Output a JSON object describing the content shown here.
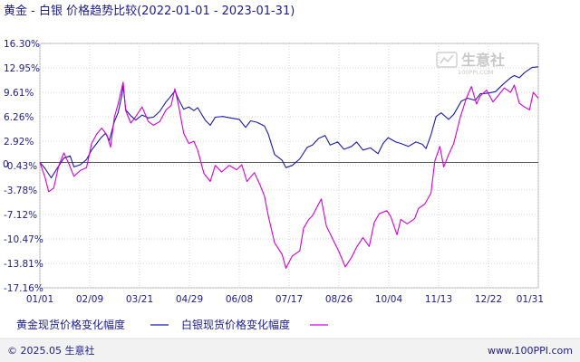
{
  "chart_data": {
    "type": "line",
    "title": "黄金 - 白银 价格趋势比较(2022-01-01 - 2023-01-31)",
    "y_ticks": [
      "16.30%",
      "12.95%",
      "9.61%",
      "6.26%",
      "2.92%",
      "-0.43%",
      "-3.78%",
      "-7.12%",
      "-10.47%",
      "-13.81%",
      "-17.16%"
    ],
    "y_tick_values": [
      16.3,
      12.95,
      9.61,
      6.26,
      2.92,
      -0.43,
      -3.78,
      -7.12,
      -10.47,
      -13.81,
      -17.16
    ],
    "zero_label": "0",
    "ylim": [
      -17.16,
      16.3
    ],
    "x_ticks": [
      "01/01",
      "02/09",
      "03/21",
      "04/29",
      "06/08",
      "07/17",
      "08/26",
      "10/04",
      "11/13",
      "12/22",
      "01/31"
    ],
    "x_start": "2022-01-01",
    "x_end": "2023-01-31",
    "grid": true,
    "legend_position": "bottom-left",
    "series": [
      {
        "name": "黄金现货价格变化幅度",
        "color": "#1a1aa6",
        "points": [
          [
            "2022-01-01",
            0.0
          ],
          [
            "2022-01-05",
            -0.8
          ],
          [
            "2022-01-10",
            -2.1
          ],
          [
            "2022-01-14",
            -1.0
          ],
          [
            "2022-01-20",
            0.6
          ],
          [
            "2022-01-25",
            0.9
          ],
          [
            "2022-01-28",
            -0.6
          ],
          [
            "2022-02-02",
            -0.3
          ],
          [
            "2022-02-07",
            0.4
          ],
          [
            "2022-02-11",
            1.7
          ],
          [
            "2022-02-15",
            2.6
          ],
          [
            "2022-02-18",
            3.3
          ],
          [
            "2022-02-22",
            4.0
          ],
          [
            "2022-02-25",
            3.0
          ],
          [
            "2022-03-01",
            5.6
          ],
          [
            "2022-03-04",
            6.8
          ],
          [
            "2022-03-07",
            9.2
          ],
          [
            "2022-03-08",
            10.6
          ],
          [
            "2022-03-10",
            7.2
          ],
          [
            "2022-03-14",
            6.4
          ],
          [
            "2022-03-18",
            5.8
          ],
          [
            "2022-03-23",
            6.5
          ],
          [
            "2022-03-28",
            6.1
          ],
          [
            "2022-04-01",
            6.2
          ],
          [
            "2022-04-06",
            7.0
          ],
          [
            "2022-04-11",
            8.3
          ],
          [
            "2022-04-14",
            8.9
          ],
          [
            "2022-04-18",
            9.8
          ],
          [
            "2022-04-21",
            8.6
          ],
          [
            "2022-04-25",
            7.3
          ],
          [
            "2022-04-29",
            7.6
          ],
          [
            "2022-05-03",
            7.1
          ],
          [
            "2022-05-06",
            7.5
          ],
          [
            "2022-05-12",
            5.8
          ],
          [
            "2022-05-16",
            5.1
          ],
          [
            "2022-05-20",
            6.2
          ],
          [
            "2022-05-26",
            6.3
          ],
          [
            "2022-06-01",
            6.1
          ],
          [
            "2022-06-08",
            5.9
          ],
          [
            "2022-06-13",
            4.8
          ],
          [
            "2022-06-17",
            5.7
          ],
          [
            "2022-06-22",
            5.5
          ],
          [
            "2022-06-28",
            5.0
          ],
          [
            "2022-07-01",
            3.9
          ],
          [
            "2022-07-06",
            1.1
          ],
          [
            "2022-07-12",
            0.3
          ],
          [
            "2022-07-15",
            -0.7
          ],
          [
            "2022-07-20",
            -0.4
          ],
          [
            "2022-07-26",
            0.5
          ],
          [
            "2022-08-01",
            2.1
          ],
          [
            "2022-08-05",
            2.4
          ],
          [
            "2022-08-10",
            3.3
          ],
          [
            "2022-08-15",
            3.7
          ],
          [
            "2022-08-19",
            2.4
          ],
          [
            "2022-08-25",
            2.8
          ],
          [
            "2022-08-30",
            1.8
          ],
          [
            "2022-09-05",
            2.2
          ],
          [
            "2022-09-09",
            2.8
          ],
          [
            "2022-09-14",
            1.7
          ],
          [
            "2022-09-20",
            2.0
          ],
          [
            "2022-09-26",
            1.2
          ],
          [
            "2022-09-30",
            2.6
          ],
          [
            "2022-10-04",
            3.4
          ],
          [
            "2022-10-10",
            2.8
          ],
          [
            "2022-10-14",
            2.6
          ],
          [
            "2022-10-20",
            2.2
          ],
          [
            "2022-10-26",
            2.8
          ],
          [
            "2022-10-31",
            2.5
          ],
          [
            "2022-11-03",
            1.9
          ],
          [
            "2022-11-07",
            3.8
          ],
          [
            "2022-11-11",
            6.3
          ],
          [
            "2022-11-15",
            6.8
          ],
          [
            "2022-11-21",
            5.9
          ],
          [
            "2022-11-25",
            6.6
          ],
          [
            "2022-12-01",
            8.4
          ],
          [
            "2022-12-06",
            8.8
          ],
          [
            "2022-12-12",
            8.5
          ],
          [
            "2022-12-16",
            9.4
          ],
          [
            "2022-12-22",
            9.5
          ],
          [
            "2022-12-28",
            9.7
          ],
          [
            "2023-01-03",
            10.7
          ],
          [
            "2023-01-09",
            11.6
          ],
          [
            "2023-01-12",
            11.9
          ],
          [
            "2023-01-16",
            11.6
          ],
          [
            "2023-01-20",
            12.3
          ],
          [
            "2023-01-26",
            13.0
          ],
          [
            "2023-01-31",
            13.1
          ]
        ]
      },
      {
        "name": "白银现货价格变化幅度",
        "color": "#d400d4",
        "points": [
          [
            "2022-01-01",
            0.0
          ],
          [
            "2022-01-05",
            -2.0
          ],
          [
            "2022-01-08",
            -4.0
          ],
          [
            "2022-01-12",
            -3.5
          ],
          [
            "2022-01-16",
            -0.4
          ],
          [
            "2022-01-20",
            1.3
          ],
          [
            "2022-01-24",
            -0.2
          ],
          [
            "2022-01-28",
            -1.9
          ],
          [
            "2022-02-02",
            -1.1
          ],
          [
            "2022-02-07",
            -0.7
          ],
          [
            "2022-02-11",
            2.6
          ],
          [
            "2022-02-15",
            3.9
          ],
          [
            "2022-02-19",
            4.7
          ],
          [
            "2022-02-23",
            3.8
          ],
          [
            "2022-02-26",
            2.1
          ],
          [
            "2022-03-01",
            6.2
          ],
          [
            "2022-03-04",
            8.0
          ],
          [
            "2022-03-08",
            11.0
          ],
          [
            "2022-03-10",
            7.1
          ],
          [
            "2022-03-14",
            5.4
          ],
          [
            "2022-03-18",
            6.3
          ],
          [
            "2022-03-23",
            7.6
          ],
          [
            "2022-03-28",
            5.6
          ],
          [
            "2022-04-01",
            5.1
          ],
          [
            "2022-04-06",
            5.6
          ],
          [
            "2022-04-11",
            7.2
          ],
          [
            "2022-04-15",
            7.8
          ],
          [
            "2022-04-18",
            10.1
          ],
          [
            "2022-04-21",
            7.7
          ],
          [
            "2022-04-25",
            4.0
          ],
          [
            "2022-04-29",
            2.6
          ],
          [
            "2022-05-03",
            2.9
          ],
          [
            "2022-05-06",
            1.7
          ],
          [
            "2022-05-11",
            -1.5
          ],
          [
            "2022-05-16",
            -2.6
          ],
          [
            "2022-05-20",
            -0.4
          ],
          [
            "2022-05-25",
            -1.3
          ],
          [
            "2022-05-31",
            -0.4
          ],
          [
            "2022-06-06",
            -1.0
          ],
          [
            "2022-06-10",
            -0.3
          ],
          [
            "2022-06-14",
            -2.6
          ],
          [
            "2022-06-20",
            -1.4
          ],
          [
            "2022-06-24",
            -2.9
          ],
          [
            "2022-06-28",
            -4.6
          ],
          [
            "2022-07-01",
            -7.3
          ],
          [
            "2022-07-06",
            -11.0
          ],
          [
            "2022-07-12",
            -12.6
          ],
          [
            "2022-07-15",
            -14.5
          ],
          [
            "2022-07-20",
            -12.8
          ],
          [
            "2022-07-26",
            -12.1
          ],
          [
            "2022-07-29",
            -9.0
          ],
          [
            "2022-08-02",
            -7.8
          ],
          [
            "2022-08-05",
            -7.3
          ],
          [
            "2022-08-09",
            -6.0
          ],
          [
            "2022-08-12",
            -5.0
          ],
          [
            "2022-08-16",
            -8.7
          ],
          [
            "2022-08-22",
            -10.8
          ],
          [
            "2022-08-26",
            -12.2
          ],
          [
            "2022-08-31",
            -14.3
          ],
          [
            "2022-09-05",
            -13.0
          ],
          [
            "2022-09-09",
            -11.6
          ],
          [
            "2022-09-14",
            -10.3
          ],
          [
            "2022-09-19",
            -11.5
          ],
          [
            "2022-09-23",
            -8.2
          ],
          [
            "2022-09-27",
            -7.0
          ],
          [
            "2022-10-03",
            -6.6
          ],
          [
            "2022-10-06",
            -7.4
          ],
          [
            "2022-10-11",
            -9.9
          ],
          [
            "2022-10-14",
            -7.8
          ],
          [
            "2022-10-19",
            -8.4
          ],
          [
            "2022-10-25",
            -7.7
          ],
          [
            "2022-10-28",
            -6.3
          ],
          [
            "2022-11-02",
            -5.7
          ],
          [
            "2022-11-07",
            -4.2
          ],
          [
            "2022-11-10",
            0.2
          ],
          [
            "2022-11-14",
            2.2
          ],
          [
            "2022-11-17",
            -0.6
          ],
          [
            "2022-11-21",
            1.1
          ],
          [
            "2022-11-25",
            2.6
          ],
          [
            "2022-11-30",
            6.1
          ],
          [
            "2022-12-05",
            8.8
          ],
          [
            "2022-12-09",
            10.4
          ],
          [
            "2022-12-13",
            8.0
          ],
          [
            "2022-12-16",
            9.1
          ],
          [
            "2022-12-21",
            9.9
          ],
          [
            "2022-12-26",
            8.3
          ],
          [
            "2022-12-30",
            9.1
          ],
          [
            "2023-01-04",
            10.2
          ],
          [
            "2023-01-09",
            9.6
          ],
          [
            "2023-01-12",
            10.6
          ],
          [
            "2023-01-16",
            8.1
          ],
          [
            "2023-01-20",
            7.6
          ],
          [
            "2023-01-24",
            7.2
          ],
          [
            "2023-01-27",
            9.6
          ],
          [
            "2023-01-31",
            8.8
          ]
        ]
      }
    ]
  },
  "watermark": {
    "brand": "生意社",
    "url": "100PPI.COM"
  },
  "footer": {
    "copyright": "© 2025.05 生意社",
    "url": "www.100PPI.com"
  }
}
